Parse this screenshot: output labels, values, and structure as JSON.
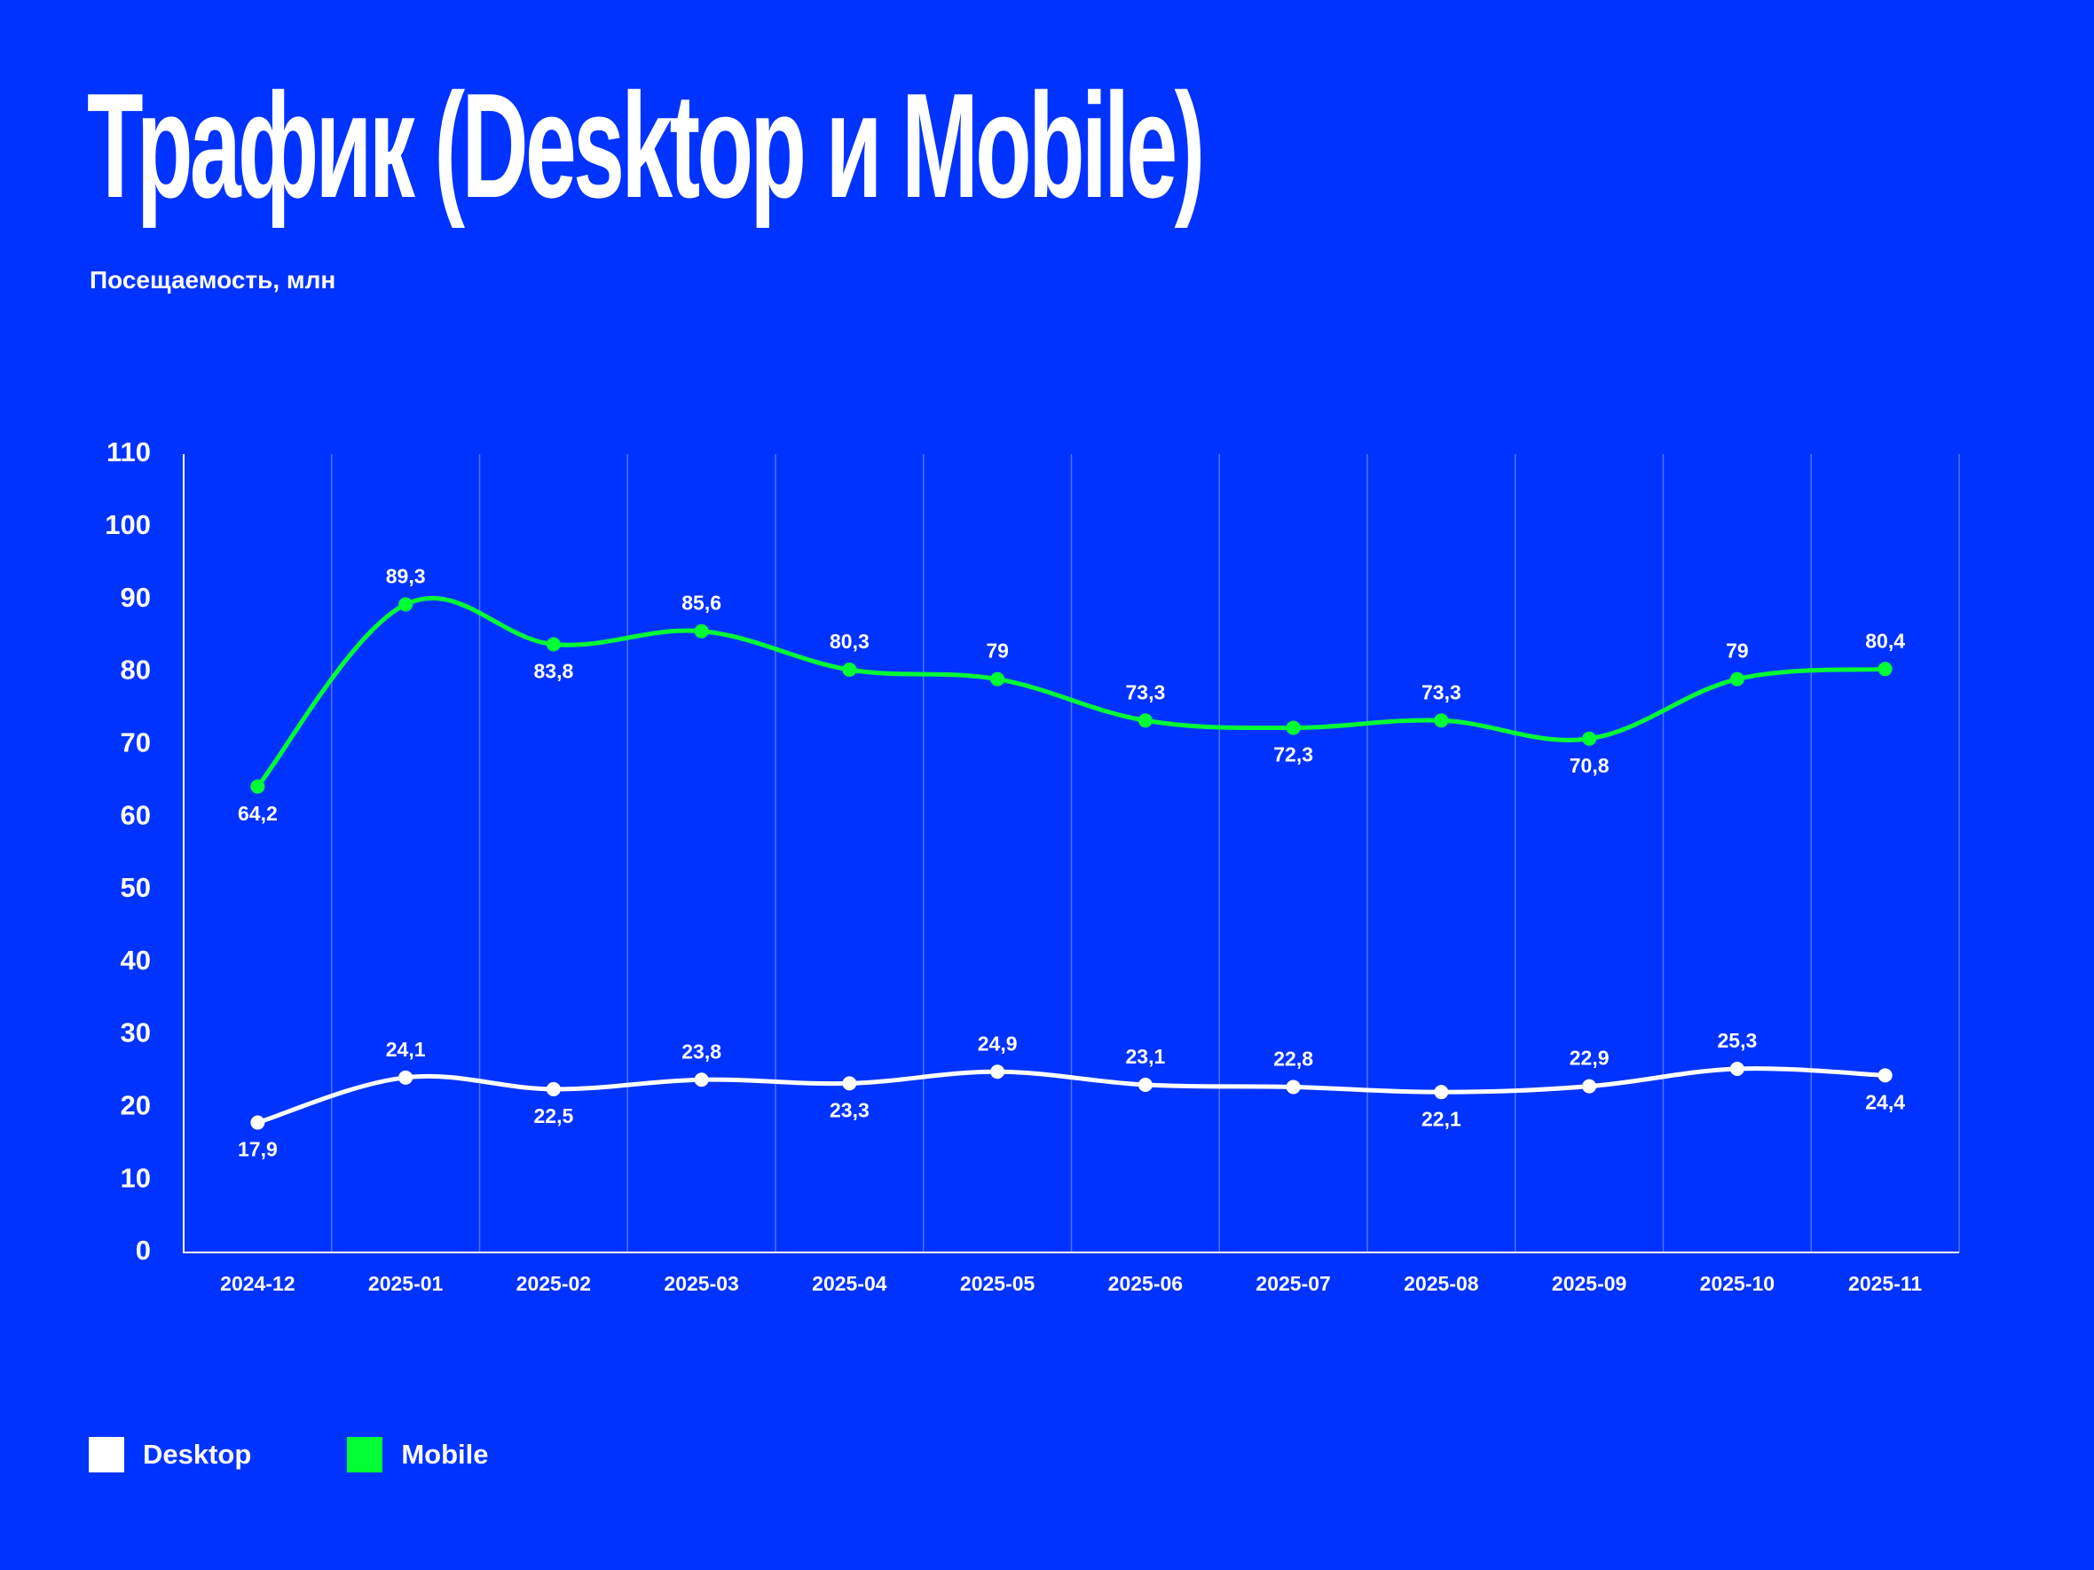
{
  "colors": {
    "background": "#0033ff",
    "desktop": "#ffffff",
    "mobile": "#00ff33",
    "grid": "#6f86ff"
  },
  "chart_data": {
    "type": "line",
    "title": "Трафик (Desktop и Mobile)",
    "subtitle": "Посещаемость, млн",
    "categories": [
      "2024-12",
      "2025-01",
      "2025-02",
      "2025-03",
      "2025-04",
      "2025-05",
      "2025-06",
      "2025-07",
      "2025-08",
      "2025-09",
      "2025-10",
      "2025-11"
    ],
    "series": [
      {
        "name": "Desktop",
        "color": "#ffffff",
        "values": [
          17.9,
          24.1,
          22.5,
          23.8,
          23.3,
          24.9,
          23.1,
          22.8,
          22.1,
          22.9,
          25.3,
          24.4
        ],
        "labels": [
          "17,9",
          "24,1",
          "22,5",
          "23,8",
          "23,3",
          "24,9",
          "23,1",
          "22,8",
          "22,1",
          "22,9",
          "25,3",
          "24,4"
        ]
      },
      {
        "name": "Mobile",
        "color": "#00ff33",
        "values": [
          64.2,
          89.3,
          83.8,
          85.6,
          80.3,
          79,
          73.3,
          72.3,
          73.3,
          70.8,
          79,
          80.4
        ],
        "labels": [
          "64,2",
          "89,3",
          "83,8",
          "85,6",
          "80,3",
          "79",
          "73,3",
          "72,3",
          "73,3",
          "70,8",
          "79",
          "80,4"
        ]
      }
    ],
    "ylim": [
      0,
      110
    ],
    "yticks": [
      0,
      10,
      20,
      30,
      40,
      50,
      60,
      70,
      80,
      90,
      100,
      110
    ],
    "grid": "vertical",
    "legend": "bottom-left"
  }
}
